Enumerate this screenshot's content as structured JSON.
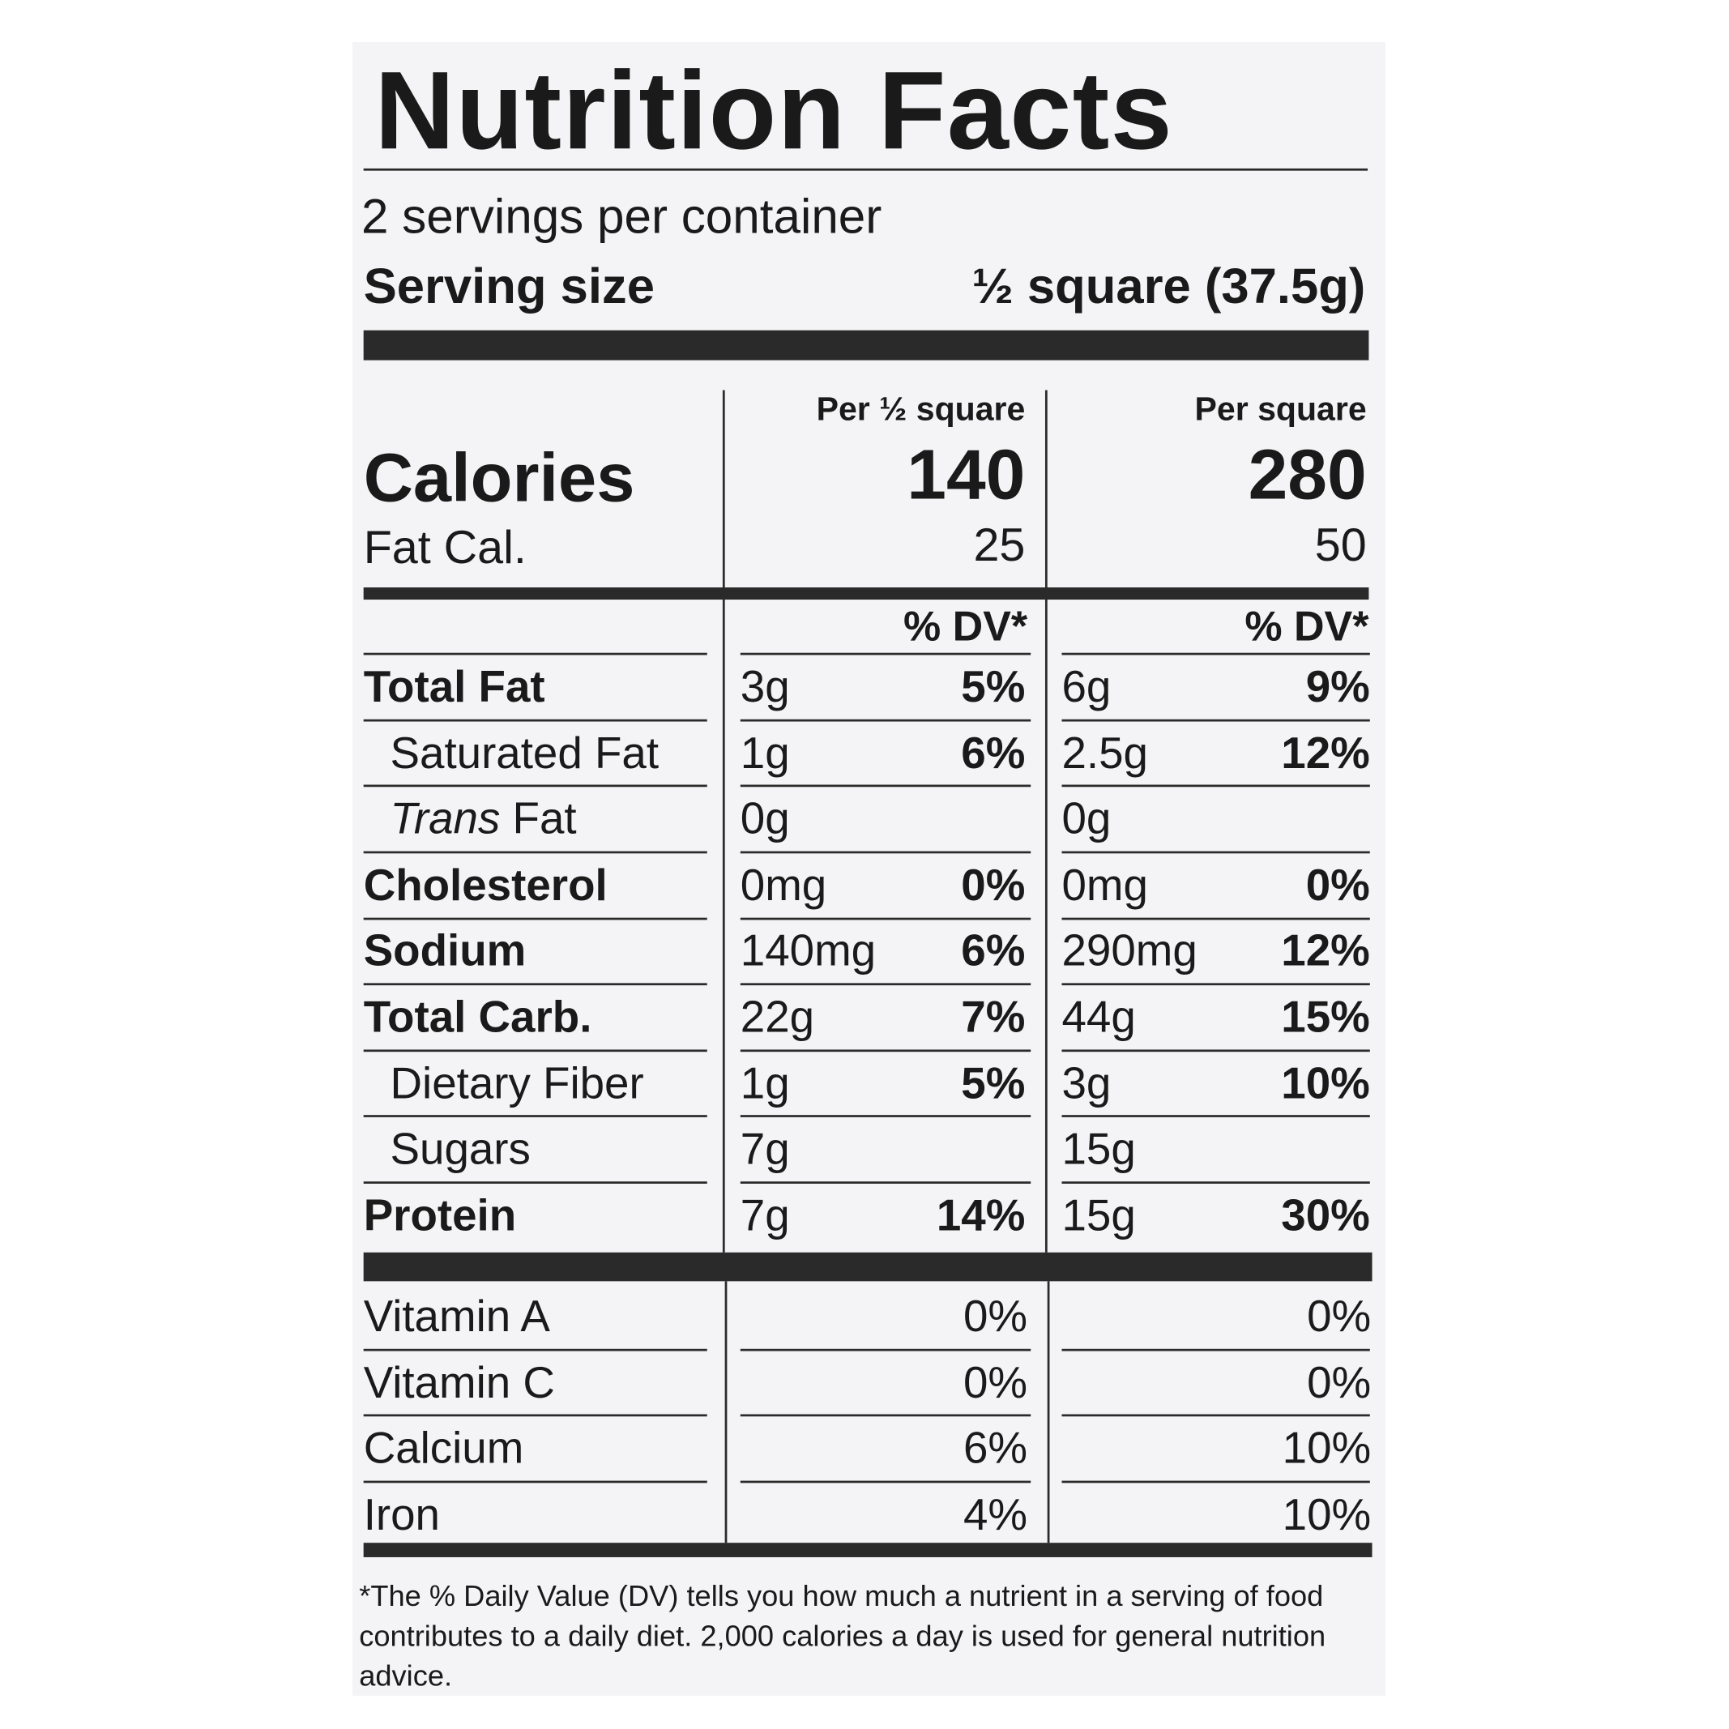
{
  "header": {
    "title": "Nutrition Facts",
    "servings": "2 servings per container",
    "serving_size_label": "Serving size",
    "serving_size_value": "½ square (37.5g)"
  },
  "columns": [
    "Per ½ square",
    "Per square"
  ],
  "calories": {
    "label": "Calories",
    "values": [
      "140",
      "280"
    ]
  },
  "fat_calories": {
    "label": "Fat Cal.",
    "values": [
      "25",
      "50"
    ]
  },
  "dv_header": [
    "% DV*",
    "% DV*"
  ],
  "nutrients": [
    {
      "label": "Total Fat",
      "style": "bold",
      "columns": [
        {
          "amount": "3g",
          "dv": "5%"
        },
        {
          "amount": "6g",
          "dv": "9%"
        }
      ]
    },
    {
      "label": "Saturated Fat",
      "style": "indent",
      "columns": [
        {
          "amount": "1g",
          "dv": "6%"
        },
        {
          "amount": "2.5g",
          "dv": "12%"
        }
      ]
    },
    {
      "label_italic": "Trans",
      "label": "Fat",
      "style": "indent",
      "columns": [
        {
          "amount": "0g"
        },
        {
          "amount": "0g"
        }
      ]
    },
    {
      "label": "Cholesterol",
      "style": "bold",
      "columns": [
        {
          "amount": "0mg",
          "dv": "0%"
        },
        {
          "amount": "0mg",
          "dv": "0%"
        }
      ]
    },
    {
      "label": "Sodium",
      "style": "bold",
      "columns": [
        {
          "amount": "140mg",
          "dv": "6%"
        },
        {
          "amount": "290mg",
          "dv": "12%"
        }
      ]
    },
    {
      "label": "Total Carb.",
      "style": "bold",
      "columns": [
        {
          "amount": "22g",
          "dv": "7%"
        },
        {
          "amount": "44g",
          "dv": "15%"
        }
      ]
    },
    {
      "label": "Dietary Fiber",
      "style": "indent",
      "columns": [
        {
          "amount": "1g",
          "dv": "5%"
        },
        {
          "amount": "3g",
          "dv": "10%"
        }
      ]
    },
    {
      "label": "Sugars",
      "style": "indent",
      "columns": [
        {
          "amount": "7g"
        },
        {
          "amount": "15g"
        }
      ]
    },
    {
      "label": "Protein",
      "style": "bold",
      "columns": [
        {
          "amount": "7g",
          "dv": "14%"
        },
        {
          "amount": "15g",
          "dv": "30%"
        }
      ]
    }
  ],
  "vitamins": [
    {
      "label": "Vitamin A",
      "values": [
        "0%",
        "0%"
      ]
    },
    {
      "label": "Vitamin C",
      "values": [
        "0%",
        "0%"
      ]
    },
    {
      "label": "Calcium",
      "values": [
        "6%",
        "10%"
      ]
    },
    {
      "label": "Iron",
      "values": [
        "4%",
        "10%"
      ]
    }
  ],
  "footnote": "*The % Daily Value (DV) tells you how much a nutrient in a serving of food contributes to a daily diet. 2,000 calories a day is used for general nutrition advice."
}
